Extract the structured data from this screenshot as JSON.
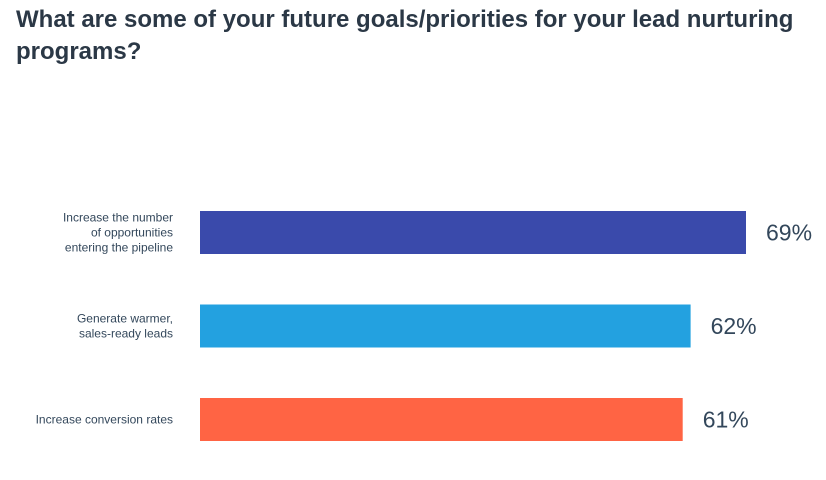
{
  "chart_data": {
    "type": "bar",
    "orientation": "horizontal",
    "title": "What are some of your future goals/priorities for your lead nurturing programs?",
    "categories": [
      [
        "Increase the number",
        "of opportunities",
        "entering the pipeline"
      ],
      [
        "Generate warmer,",
        "sales-ready leads"
      ],
      [
        "Increase conversion rates"
      ]
    ],
    "values": [
      69,
      62,
      61
    ],
    "value_labels": [
      "69%",
      "62%",
      "61%"
    ],
    "colors": [
      "#3a4aab",
      "#23a1e0",
      "#ff6444"
    ],
    "xlim": [
      0,
      100
    ],
    "grid": false,
    "legend": "none"
  }
}
